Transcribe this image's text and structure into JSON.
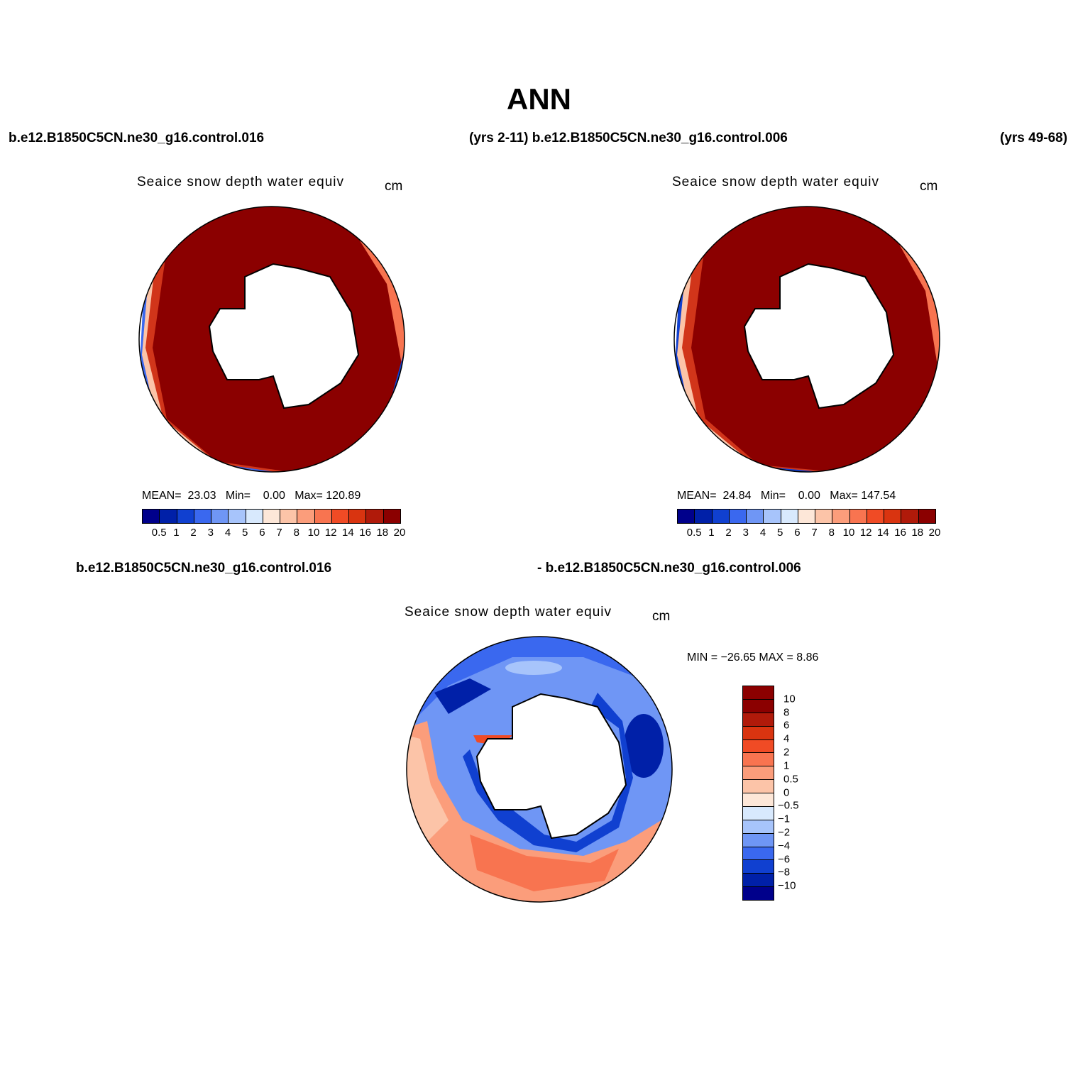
{
  "title": "ANN",
  "header": {
    "case1": "b.e12.B1850C5CN.ne30_g16.control.016",
    "years1_case2": "(yrs 2-11) b.e12.B1850C5CN.ne30_g16.control.006",
    "years2": "(yrs 49-68)"
  },
  "panels": [
    {
      "title": "Seaice snow depth water equiv",
      "units": "cm",
      "stats": {
        "mean_label": "MEAN=",
        "mean": "23.03",
        "min_label": "Min=",
        "min": "0.00",
        "max_label": "Max=",
        "max": "120.89"
      },
      "palette": "absolute"
    },
    {
      "title": "Seaice snow depth water equiv",
      "units": "cm",
      "stats": {
        "mean_label": "MEAN=",
        "mean": "24.84",
        "min_label": "Min=",
        "min": "0.00",
        "max_label": "Max=",
        "max": "147.54"
      },
      "palette": "absolute"
    }
  ],
  "diff_panel": {
    "case_left": "b.e12.B1850C5CN.ne30_g16.control.016",
    "case_right": "- b.e12.B1850C5CN.ne30_g16.control.006",
    "title": "Seaice snow depth water equiv",
    "units": "cm",
    "minmax": "MIN = −26.65 MAX =    8.86"
  },
  "colorbar_abs": {
    "colors": [
      "#00008b",
      "#0020a8",
      "#1040d0",
      "#3a68ef",
      "#6f96f5",
      "#a7c4fb",
      "#d8e9fd",
      "#fde7d8",
      "#fcc4a8",
      "#fb9d7b",
      "#f87450",
      "#f04b25",
      "#d93410",
      "#b01a0a",
      "#8b0000"
    ],
    "labels": [
      "0.5",
      "1",
      "2",
      "3",
      "4",
      "5",
      "6",
      "7",
      "8",
      "10",
      "12",
      "14",
      "16",
      "18",
      "20"
    ]
  },
  "colorbar_diff": {
    "colors": [
      "#8b0000",
      "#b01a0a",
      "#d93410",
      "#f04b25",
      "#f87450",
      "#fb9d7b",
      "#fcc4a8",
      "#fde7d8",
      "#d8e9fd",
      "#a7c4fb",
      "#6f96f5",
      "#3a68ef",
      "#1040d0",
      "#0020a8",
      "#00008b"
    ],
    "labels": [
      "10",
      "8",
      "6",
      "4",
      "2",
      "1",
      "0.5",
      "0",
      "−0.5",
      "−1",
      "−2",
      "−4",
      "−6",
      "−8",
      "−10"
    ]
  }
}
